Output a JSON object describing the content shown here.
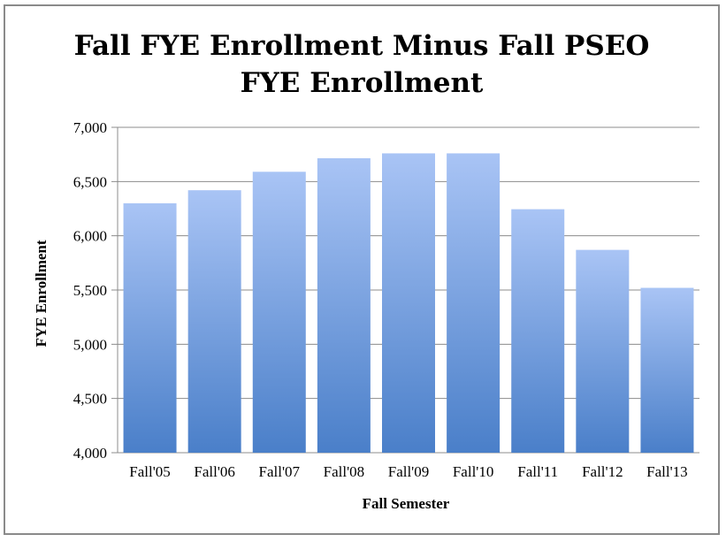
{
  "chart_data": {
    "type": "bar",
    "title": [
      "Fall FYE Enrollment Minus Fall PSEO",
      "FYE Enrollment"
    ],
    "xlabel": "Fall Semester",
    "ylabel": "FYE Enrollment",
    "categories": [
      "Fall'05",
      "Fall'06",
      "Fall'07",
      "Fall'08",
      "Fall'09",
      "Fall'10",
      "Fall'11",
      "Fall'12",
      "Fall'13"
    ],
    "values": [
      6300,
      6420,
      6590,
      6715,
      6760,
      6760,
      6245,
      5870,
      5520
    ],
    "ylim": [
      4000,
      7000
    ],
    "yticks": [
      "4,000",
      "4,500",
      "5,000",
      "5,500",
      "6,000",
      "6,500",
      "7,000"
    ],
    "grid": true,
    "legend": "none",
    "colors": {
      "bar_top": "#a9c4f5",
      "bar_bottom": "#4a7fc9",
      "grid": "#8c8c8c"
    }
  }
}
